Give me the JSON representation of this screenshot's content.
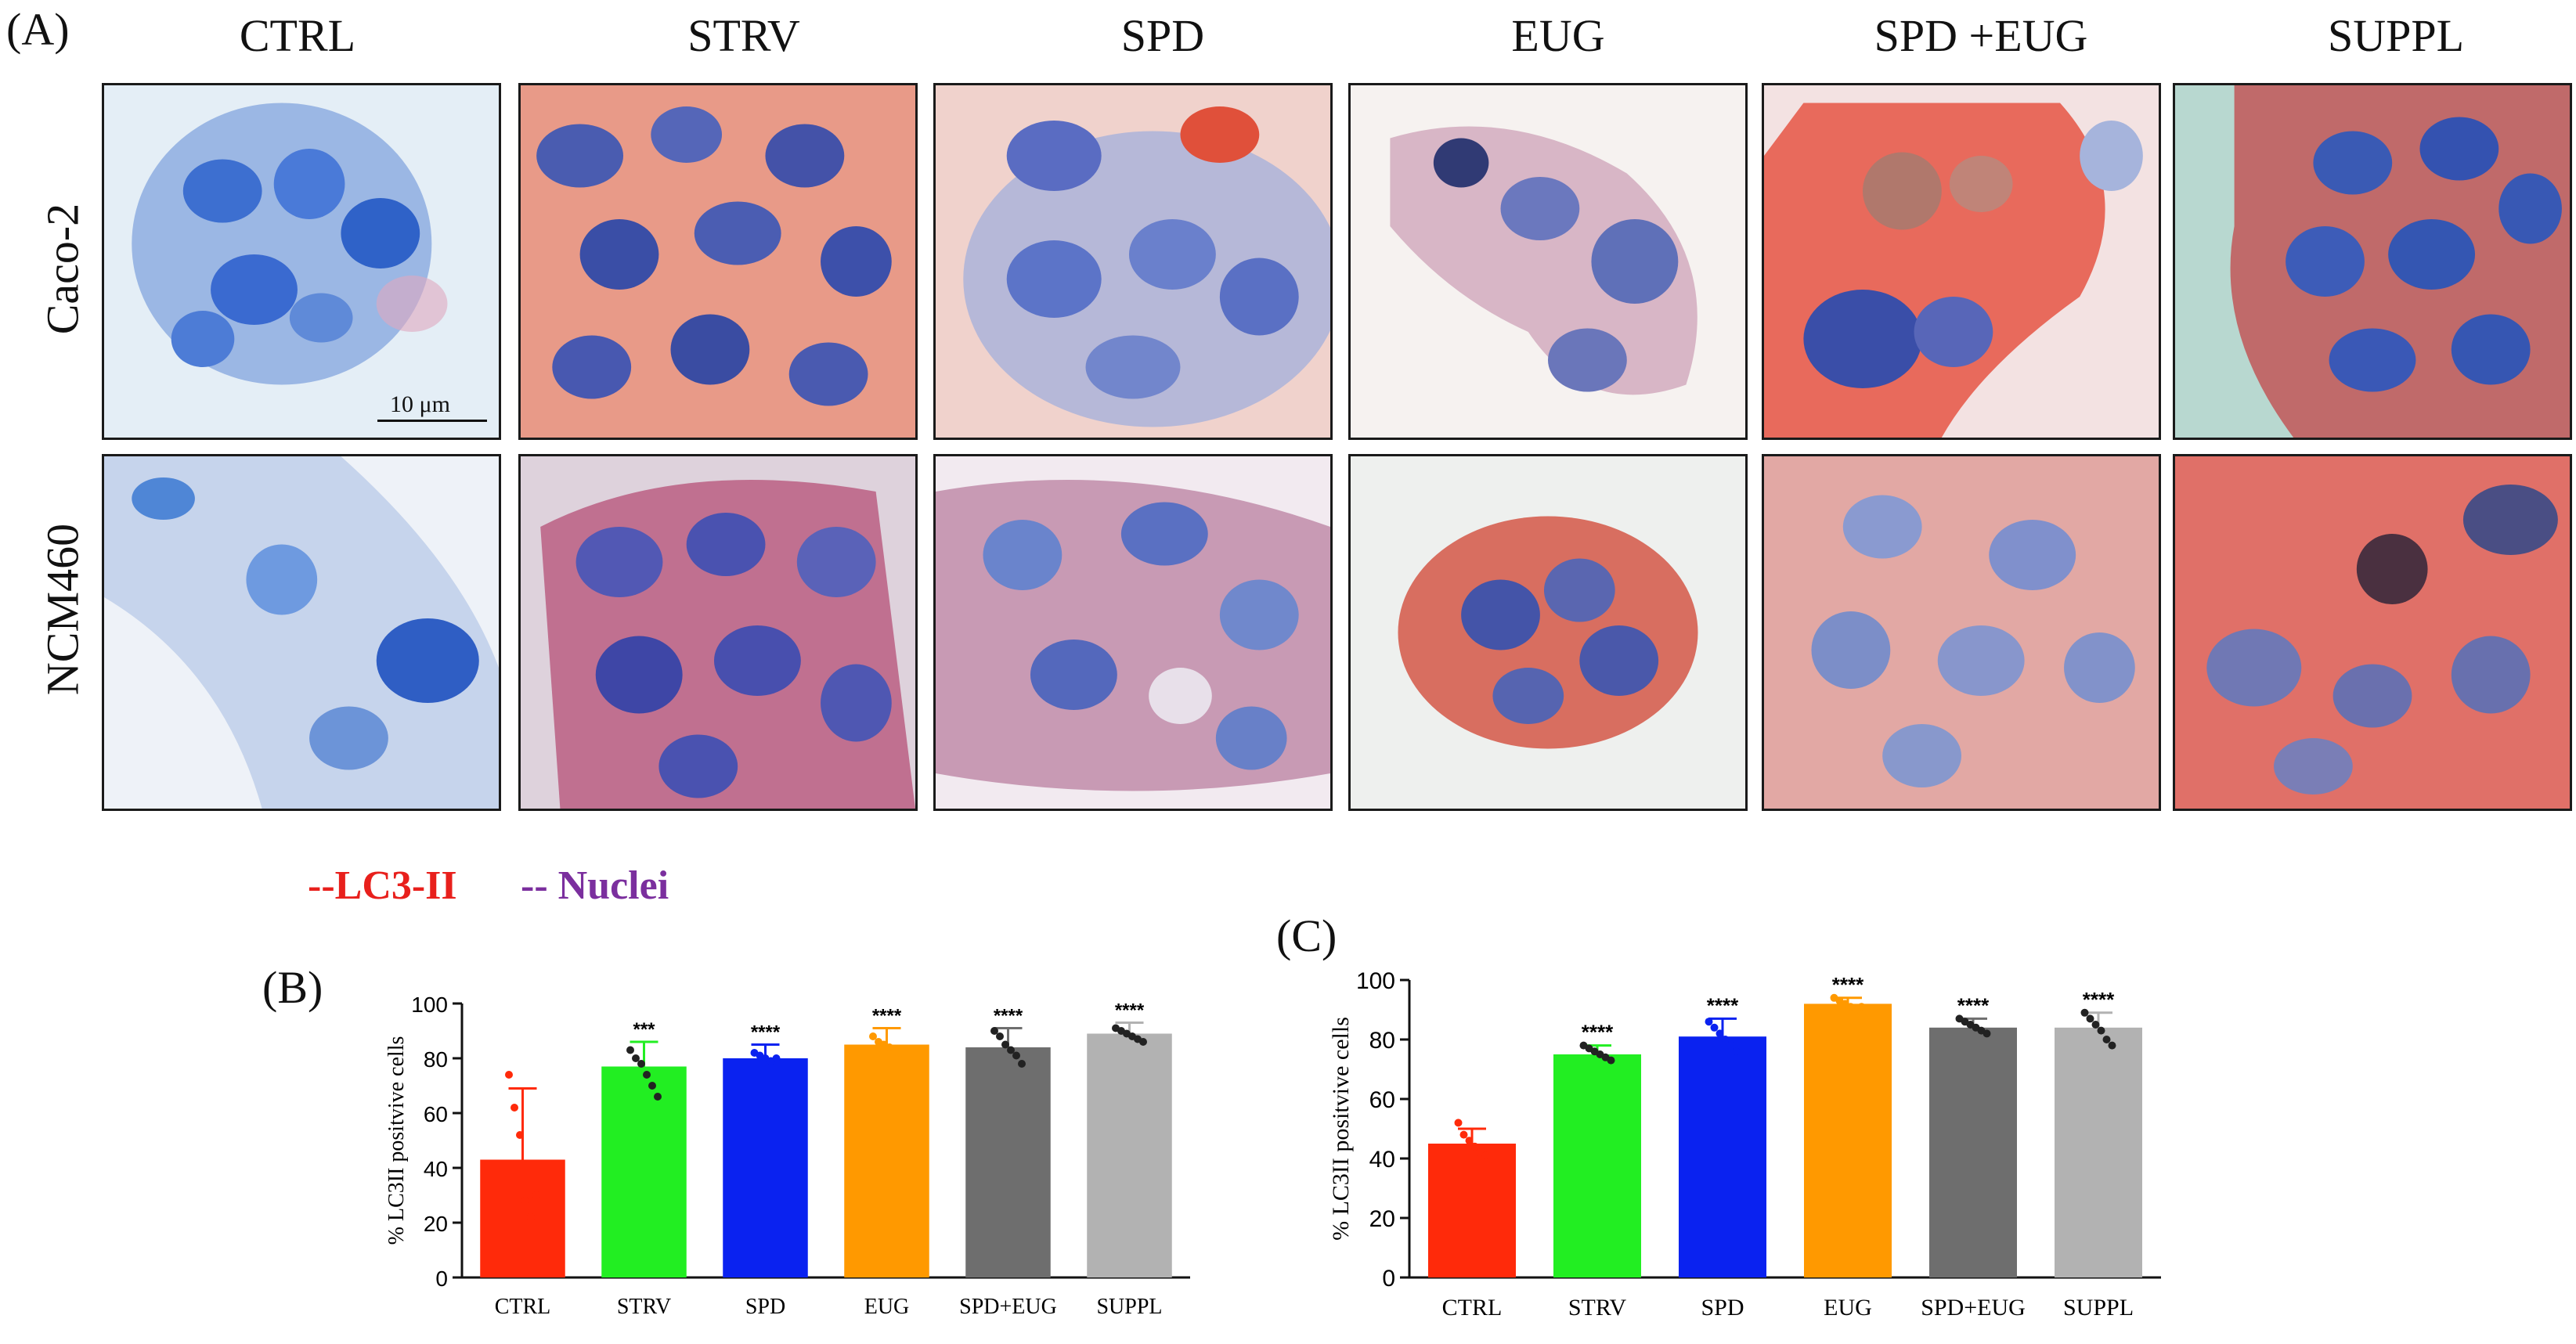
{
  "panel_labels": {
    "a": "(A)",
    "b": "(B)",
    "c": "(C)"
  },
  "conditions": [
    "CTRL",
    "STRV",
    "SPD",
    "EUG",
    "SPD +EUG",
    "SUPPL"
  ],
  "row_labels": [
    "Caco-2",
    "NCM460"
  ],
  "scale_bar": "10 μm",
  "legend": {
    "lc3": "--LC3-II",
    "lc3_color": "#e8201c",
    "nuclei": "-- Nuclei",
    "nuclei_color": "#7b2f9e"
  },
  "colors": {
    "CTRL": "#ff2a0a",
    "STRV": "#22ee22",
    "SPD": "#0a22f0",
    "EUG": "#ff9900",
    "SPD+EUG": "#6e6e6e",
    "SUPPL": "#b2b2b2"
  },
  "chart_data": [
    {
      "id": "B",
      "type": "bar",
      "ylabel": "% LC3II positvive cells",
      "ylim": [
        0,
        100
      ],
      "yticks": [
        "0",
        "20",
        "40",
        "60",
        "80",
        "100"
      ],
      "categories": [
        "CTRL",
        "STRV",
        "SPD",
        "EUG",
        "SPD+EUG",
        "SUPPL"
      ],
      "values": [
        43,
        77,
        80,
        85,
        84,
        89
      ],
      "errors": [
        26,
        9,
        5,
        6,
        7,
        4
      ],
      "significance": [
        "",
        "***",
        "****",
        "****",
        "****",
        "****"
      ],
      "points": [
        [
          74,
          62,
          52,
          28,
          22,
          30
        ],
        [
          83,
          80,
          78,
          74,
          70,
          66
        ],
        [
          82,
          81,
          80,
          79,
          80
        ],
        [
          88,
          86,
          85,
          84,
          83,
          82
        ],
        [
          90,
          88,
          85,
          83,
          81,
          78
        ],
        [
          91,
          90,
          89,
          88,
          87,
          86
        ]
      ]
    },
    {
      "id": "C",
      "type": "bar",
      "ylabel": "% LC3II positvive cells",
      "ylim": [
        0,
        100
      ],
      "yticks": [
        "0",
        "20",
        "40",
        "60",
        "80",
        "100"
      ],
      "categories": [
        "CTRL",
        "STRV",
        "SPD",
        "EUG",
        "SPD+EUG",
        "SUPPL"
      ],
      "values": [
        45,
        75,
        81,
        92,
        84,
        84
      ],
      "errors": [
        5,
        3,
        6,
        2,
        3,
        5
      ],
      "significance": [
        "",
        "****",
        "****",
        "****",
        "****",
        "****"
      ],
      "points": [
        [
          52,
          48,
          46,
          44,
          42,
          41
        ],
        [
          78,
          77,
          76,
          75,
          74,
          73
        ],
        [
          86,
          84,
          82,
          80,
          78,
          76
        ],
        [
          94,
          93,
          92,
          91,
          90,
          91
        ],
        [
          87,
          86,
          85,
          84,
          83,
          82
        ],
        [
          89,
          87,
          85,
          83,
          80,
          78
        ]
      ]
    }
  ]
}
